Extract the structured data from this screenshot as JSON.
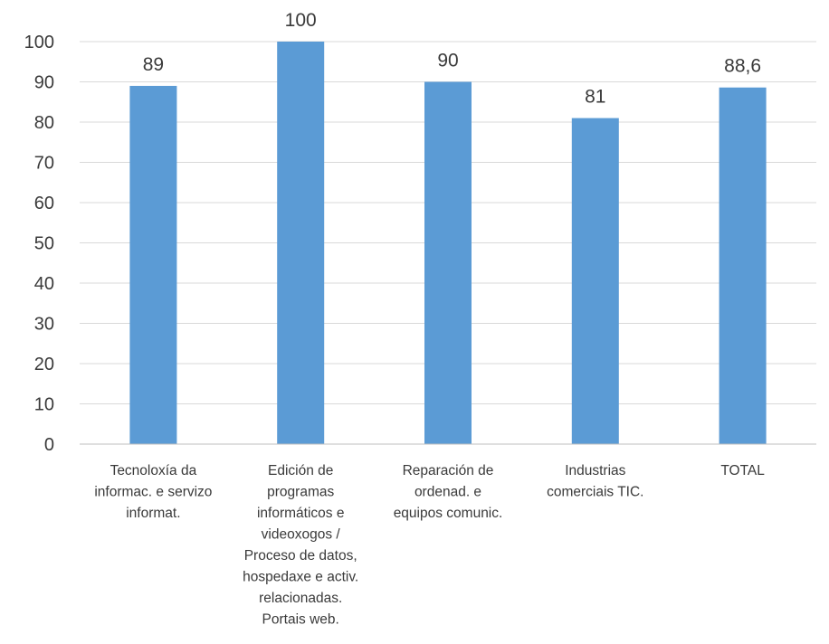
{
  "chart_data": {
    "type": "bar",
    "title": "",
    "xlabel": "",
    "ylabel": "",
    "ylim": [
      0,
      100
    ],
    "yticks": [
      0,
      10,
      20,
      30,
      40,
      50,
      60,
      70,
      80,
      90,
      100
    ],
    "grid": true,
    "legend": "none",
    "bar_color": "#5b9bd5",
    "categories": [
      [
        "Tecnoloxía da",
        "informac. e servizo",
        "informat."
      ],
      [
        "Edición de",
        "programas",
        "informáticos e",
        "videoxogos /",
        "Proceso de datos,",
        "hospedaxe e activ.",
        "relacionadas.",
        "Portais web."
      ],
      [
        "Reparación de",
        "ordenad. e",
        "equipos comunic."
      ],
      [
        "Industrias",
        "comerciais TIC."
      ],
      [
        "TOTAL"
      ]
    ],
    "values": [
      89,
      100,
      90,
      81,
      88.6
    ],
    "value_labels": [
      "89",
      "100",
      "90",
      "81",
      "88,6"
    ]
  }
}
